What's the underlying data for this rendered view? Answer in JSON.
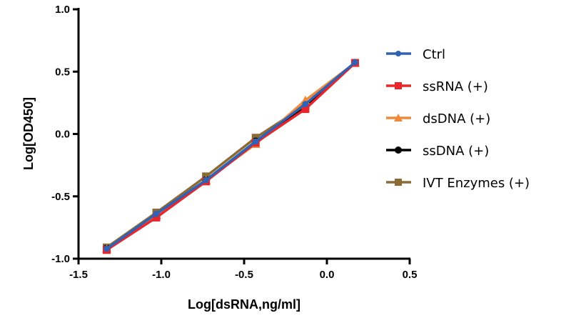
{
  "chart_data": {
    "type": "line",
    "title": "",
    "xlabel": "Log[dsRNA,ng/ml]",
    "ylabel": "Log[OD450]",
    "xlim": [
      -1.5,
      0.5
    ],
    "ylim": [
      -1.0,
      1.0
    ],
    "xticks": [
      -1.5,
      -1.0,
      -0.5,
      0.0,
      0.5
    ],
    "xtick_labels": [
      "-1.5",
      "-1.0",
      "-0.5",
      "0.0",
      "0.5"
    ],
    "yticks": [
      -1.0,
      -0.5,
      0.0,
      0.5,
      1.0
    ],
    "ytick_labels": [
      "-1.0",
      "-0.5",
      "0.0",
      "0.5",
      "1.0"
    ],
    "grid": false,
    "legend_position": "right",
    "x": [
      -1.33,
      -1.03,
      -0.73,
      -0.43,
      -0.13,
      0.17
    ],
    "series": [
      {
        "name": "IVT Enzymes (+)",
        "color": "#8B6A35",
        "marker": "square",
        "values": [
          -0.91,
          -0.63,
          -0.34,
          -0.03,
          0.23,
          0.57
        ]
      },
      {
        "name": "ssDNA (+)",
        "color": "#000000",
        "marker": "circle",
        "values": [
          -0.92,
          -0.66,
          -0.37,
          -0.06,
          0.21,
          0.57
        ]
      },
      {
        "name": "dsDNA (+)",
        "color": "#F08A3A",
        "marker": "triangle",
        "values": [
          -0.92,
          -0.65,
          -0.37,
          -0.08,
          0.27,
          0.57
        ]
      },
      {
        "name": "ssRNA (+)",
        "color": "#E8262B",
        "marker": "square",
        "values": [
          -0.93,
          -0.67,
          -0.38,
          -0.07,
          0.2,
          0.57
        ]
      },
      {
        "name": "Ctrl",
        "color": "#2F62B5",
        "marker": "dot",
        "values": [
          -0.92,
          -0.64,
          -0.37,
          -0.06,
          0.24,
          0.575
        ]
      }
    ],
    "legend_order": [
      "Ctrl",
      "ssRNA (+)",
      "dsDNA (+)",
      "ssDNA (+)",
      "IVT Enzymes (+)"
    ]
  }
}
